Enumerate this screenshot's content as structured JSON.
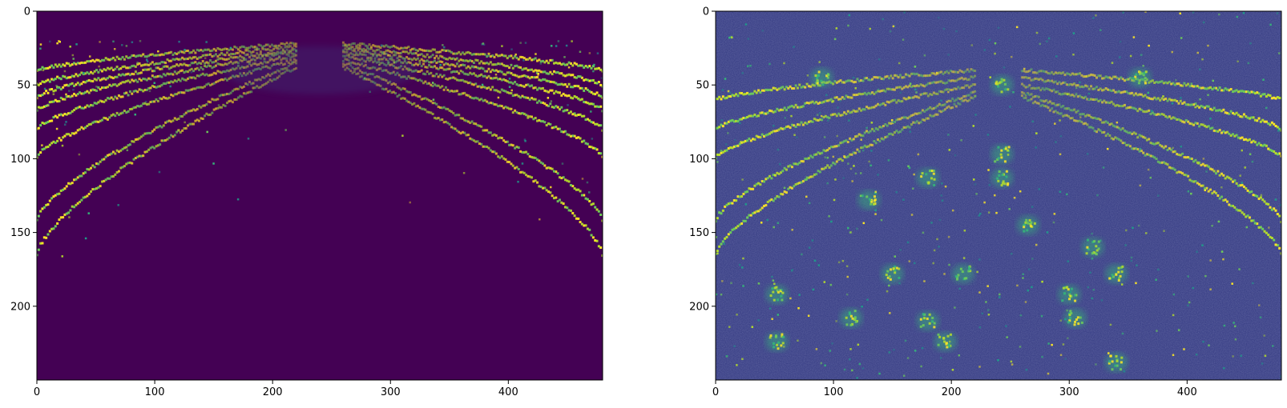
{
  "chart_data": [
    {
      "type": "heatmap",
      "colormap": "viridis",
      "title": "",
      "xlabel": "",
      "ylabel": "",
      "xlim": [
        0,
        480
      ],
      "ylim": [
        250,
        0
      ],
      "x_ticks": [
        0,
        100,
        200,
        300,
        400
      ],
      "y_ticks": [
        0,
        50,
        100,
        150,
        200
      ],
      "x_tick_labels": [
        "0",
        "100",
        "200",
        "300",
        "400"
      ],
      "y_tick_labels": [
        "0",
        "50",
        "100",
        "150",
        "200"
      ],
      "background_value_color": "#440154",
      "features": {
        "description": "sparse bright curved streaks on dark background",
        "curves": [
          {
            "row_at_edge": 40,
            "apex_row": 22
          },
          {
            "row_at_edge": 50,
            "apex_row": 24
          },
          {
            "row_at_edge": 58,
            "apex_row": 26
          },
          {
            "row_at_edge": 67,
            "apex_row": 28
          },
          {
            "row_at_edge": 80,
            "apex_row": 30
          },
          {
            "row_at_edge": 99,
            "apex_row": 33
          },
          {
            "row_at_edge": 142,
            "apex_row": 35
          },
          {
            "row_at_edge": 165,
            "apex_row": 38
          }
        ]
      }
    },
    {
      "type": "heatmap",
      "colormap": "viridis",
      "title": "",
      "xlabel": "",
      "ylabel": "",
      "xlim": [
        0,
        480
      ],
      "ylim": [
        250,
        0
      ],
      "x_ticks": [
        0,
        100,
        200,
        300,
        400
      ],
      "y_ticks": [
        0,
        50,
        100,
        150,
        200
      ],
      "x_tick_labels": [
        "0",
        "100",
        "200",
        "300",
        "400"
      ],
      "y_tick_labels": [
        "0",
        "50",
        "100",
        "150",
        "200"
      ],
      "background_value_color": "#3b3a7f",
      "features": {
        "description": "noisy textured background with bright curved streaks and blob clusters",
        "curves": [
          {
            "row_at_edge": 60,
            "apex_row": 40
          },
          {
            "row_at_edge": 80,
            "apex_row": 45
          },
          {
            "row_at_edge": 99,
            "apex_row": 50
          },
          {
            "row_at_edge": 142,
            "apex_row": 55
          },
          {
            "row_at_edge": 165,
            "apex_row": 58
          }
        ],
        "blobs": [
          {
            "x": 90,
            "y": 45
          },
          {
            "x": 360,
            "y": 45
          },
          {
            "x": 243,
            "y": 50
          },
          {
            "x": 180,
            "y": 113
          },
          {
            "x": 243,
            "y": 97
          },
          {
            "x": 243,
            "y": 113
          },
          {
            "x": 150,
            "y": 178
          },
          {
            "x": 210,
            "y": 178
          },
          {
            "x": 340,
            "y": 178
          },
          {
            "x": 180,
            "y": 210
          },
          {
            "x": 115,
            "y": 208
          },
          {
            "x": 52,
            "y": 224
          },
          {
            "x": 195,
            "y": 224
          },
          {
            "x": 305,
            "y": 208
          },
          {
            "x": 340,
            "y": 238
          },
          {
            "x": 130,
            "y": 128
          },
          {
            "x": 265,
            "y": 145
          },
          {
            "x": 320,
            "y": 160
          },
          {
            "x": 52,
            "y": 192
          },
          {
            "x": 300,
            "y": 192
          }
        ]
      }
    }
  ]
}
